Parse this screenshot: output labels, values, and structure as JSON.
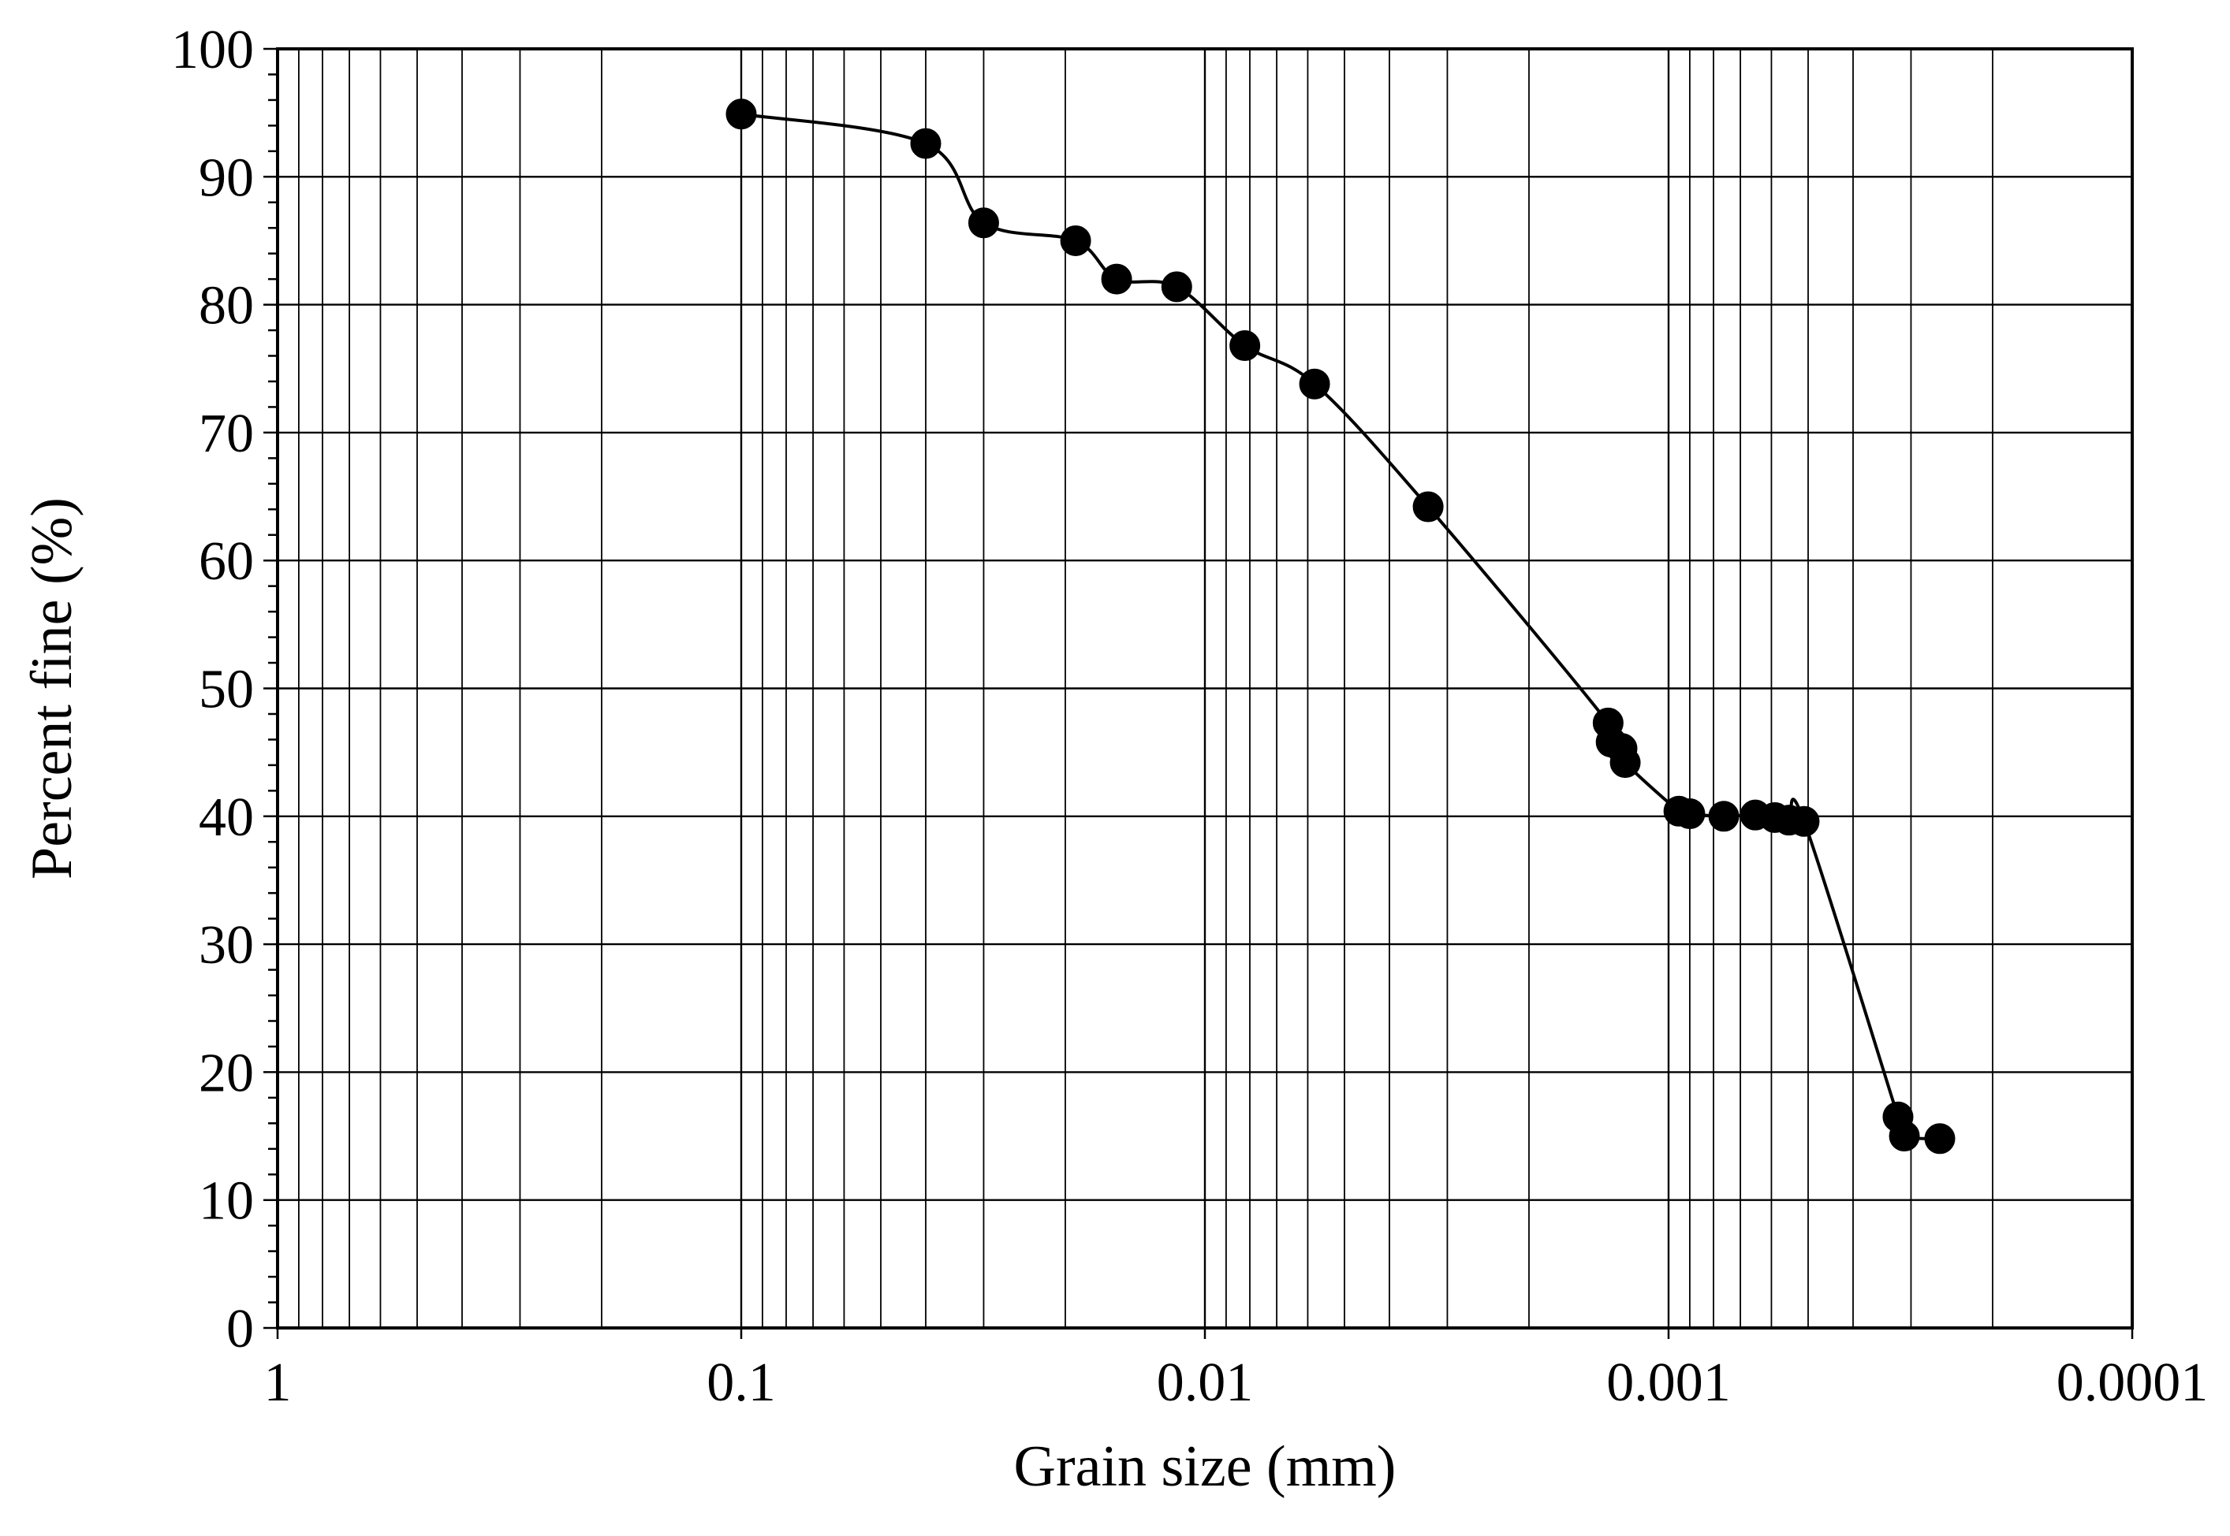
{
  "chart_data": {
    "type": "scatter",
    "title": "",
    "xlabel": "Grain size (mm)",
    "ylabel": "Percent fine (%)",
    "x_scale": "log",
    "x_reversed": true,
    "xlim": [
      1,
      0.0001
    ],
    "ylim": [
      0,
      100
    ],
    "x_ticks": [
      {
        "value": 1,
        "label": "1"
      },
      {
        "value": 0.1,
        "label": "0.1"
      },
      {
        "value": 0.01,
        "label": "0.01"
      },
      {
        "value": 0.001,
        "label": "0.001"
      },
      {
        "value": 0.0001,
        "label": "0.0001"
      }
    ],
    "y_ticks": [
      {
        "value": 0,
        "label": "0"
      },
      {
        "value": 10,
        "label": "10"
      },
      {
        "value": 20,
        "label": "20"
      },
      {
        "value": 30,
        "label": "30"
      },
      {
        "value": 40,
        "label": "40"
      },
      {
        "value": 50,
        "label": "50"
      },
      {
        "value": 60,
        "label": "60"
      },
      {
        "value": 70,
        "label": "70"
      },
      {
        "value": 80,
        "label": "80"
      },
      {
        "value": 90,
        "label": "90"
      },
      {
        "value": 100,
        "label": "100"
      }
    ],
    "grid": true,
    "marker": "filled-circle",
    "line_style": "solid-smoothed",
    "color": "#000000",
    "series": [
      {
        "points": [
          {
            "x": 0.1,
            "y": 94.9
          },
          {
            "x": 0.04,
            "y": 92.6
          },
          {
            "x": 0.03,
            "y": 86.4
          },
          {
            "x": 0.019,
            "y": 85.0
          },
          {
            "x": 0.0155,
            "y": 82.0
          },
          {
            "x": 0.0115,
            "y": 81.4
          },
          {
            "x": 0.0082,
            "y": 76.8
          },
          {
            "x": 0.0058,
            "y": 73.8
          },
          {
            "x": 0.0033,
            "y": 64.2
          },
          {
            "x": 0.00135,
            "y": 47.3
          },
          {
            "x": 0.00133,
            "y": 45.8
          },
          {
            "x": 0.00126,
            "y": 45.3
          },
          {
            "x": 0.00124,
            "y": 44.2
          },
          {
            "x": 0.00095,
            "y": 40.4
          },
          {
            "x": 0.0009,
            "y": 40.2
          },
          {
            "x": 0.00076,
            "y": 40.0
          },
          {
            "x": 0.00065,
            "y": 40.1
          },
          {
            "x": 0.00059,
            "y": 39.9
          },
          {
            "x": 0.00055,
            "y": 39.7
          },
          {
            "x": 0.00051,
            "y": 39.6
          },
          {
            "x": 0.00032,
            "y": 16.5
          },
          {
            "x": 0.00031,
            "y": 15.0
          },
          {
            "x": 0.00026,
            "y": 14.8
          }
        ]
      }
    ]
  }
}
